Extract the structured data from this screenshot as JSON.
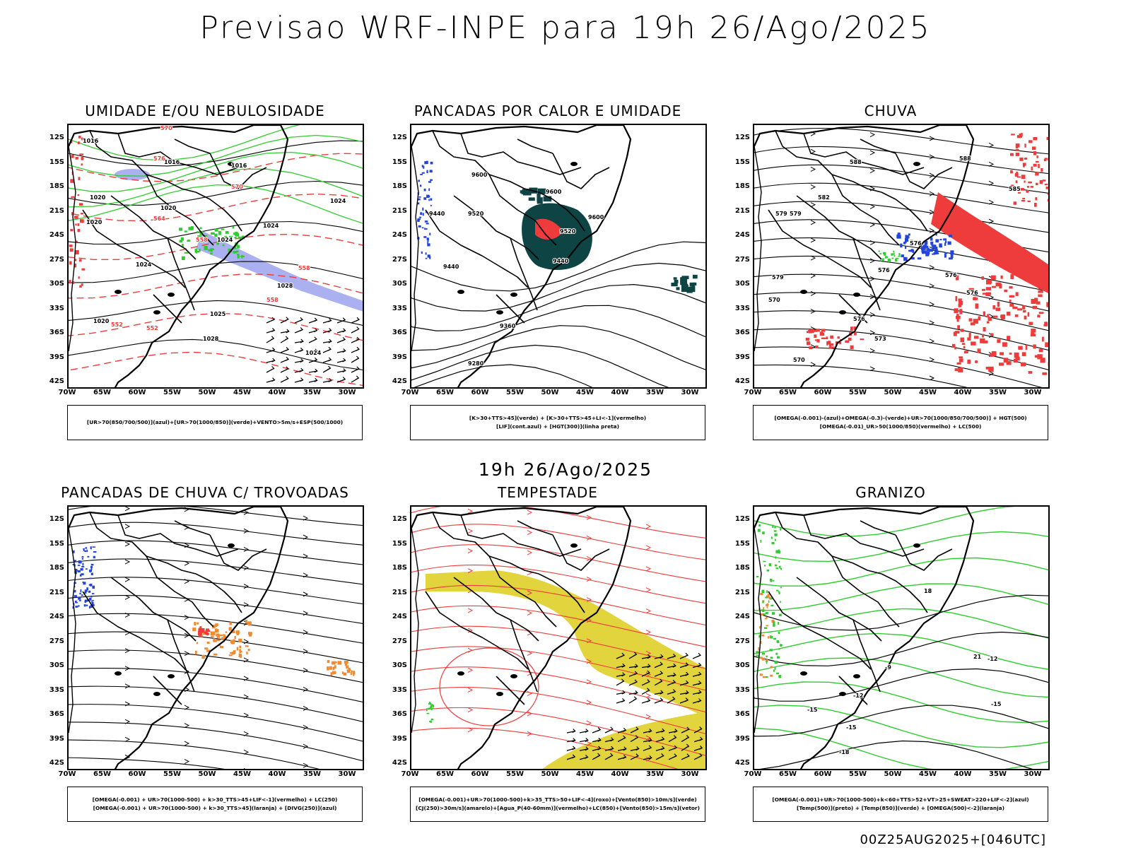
{
  "header": {
    "title": "Previsao WRF-INPE  para 19h 26/Ago/2025",
    "mid_title": "19h 26/Ago/2025",
    "footer": "00Z25AUG2025+[046UTC]"
  },
  "axes": {
    "lat_ticks": [
      "12S",
      "15S",
      "18S",
      "21S",
      "24S",
      "27S",
      "30S",
      "33S",
      "36S",
      "39S",
      "42S"
    ],
    "lon_ticks": [
      "70W",
      "65W",
      "60W",
      "55W",
      "50W",
      "45W",
      "40W",
      "35W",
      "30W"
    ]
  },
  "colors": {
    "red": "#ee3b3b",
    "green": "#2ecc2e",
    "blue": "#2244dd",
    "lavender": "#aab0f0",
    "darkteal": "#0f4444",
    "yellow": "#e2d43c",
    "orange": "#f08a30"
  },
  "panels": [
    {
      "id": "umidade",
      "title": "UMIDADE E/OU NEBULOSIDADE",
      "legend": [
        "[UR>70(850/700/500)](azul)+[UR>70(1000/850)](verde)+VENTO>5m/s+ESP(500/1000)"
      ],
      "contour_labels": [
        "1016",
        "1016",
        "1016",
        "1020",
        "1020",
        "1020",
        "1024",
        "1024",
        "1024",
        "1028",
        "1028",
        "1025",
        "1020",
        "1024",
        "1024",
        "570",
        "576",
        "570",
        "564",
        "558",
        "552",
        "558",
        "558",
        "552"
      ]
    },
    {
      "id": "pancadas-calor",
      "title": "PANCADAS POR CALOR E UMIDADE",
      "legend": [
        "[K>30+TTS>45](verde) + [K>30+TTS>45+LI<-1](vermelho)",
        "[LIF](cont.azul) + [HGT(300)](linha preta)"
      ],
      "contour_labels": [
        "9600",
        "9600",
        "9440",
        "9520",
        "9520",
        "9440",
        "9440",
        "9360",
        "9280",
        "9600"
      ]
    },
    {
      "id": "chuva",
      "title": "CHUVA",
      "legend": [
        "[OMEGA(-0.001)-(azul)+OMEGA(-0.3)-(verde)+UR>70(1000/850/700/500)] + HGT(500)",
        "[OMEGA(-0.01)_UR>50(1000/850)(vermelho) + LC(500)"
      ],
      "contour_labels": [
        "588",
        "588",
        "582",
        "579",
        "579",
        "576",
        "576",
        "579",
        "576",
        "576",
        "573",
        "570",
        "570",
        "576",
        "585"
      ]
    },
    {
      "id": "trovoadas",
      "title": "PANCADAS DE CHUVA C/ TROVOADAS",
      "legend": [
        "[OMEGA(-0.001) + UR>70(1000-500) + k>30_TTS>45+LIF<-1](vermelho) + LC(250)",
        "[OMEGA(-0.001) + UR>70(1000-500) + k>30_TTS>45](laranja) + [DIVG(250)](azul)"
      ],
      "contour_labels": []
    },
    {
      "id": "tempestade",
      "title": "TEMPESTADE",
      "legend": [
        "[OMEGA(-0.001)+UR>70(1000-500)+k>35_TTS>50+LIF<-4](roxo)+[Vento(850)>10m/s](verde)",
        "[CJ(250)>30m/s](amarelo)+[Agua_P(40-60mm)](vermelho)+LC(850)+[Vento(850)>15m/s](vetor)"
      ],
      "contour_labels": []
    },
    {
      "id": "granizo",
      "title": "GRANIZO",
      "legend": [
        "[OMEGA(-0.001)+UR>70(1000-500)+k<60+TTS>52+VT>25+SWEAT>220+LIF<-2](azul)",
        "[Temp(500)](preto) + [Temp(850)](verde) + [OMEGA(500)<-2](laranja)"
      ],
      "contour_labels": [
        "-15",
        "-12",
        "-15",
        "-15",
        "-18",
        "-12",
        "-9",
        "21",
        "18"
      ]
    }
  ]
}
